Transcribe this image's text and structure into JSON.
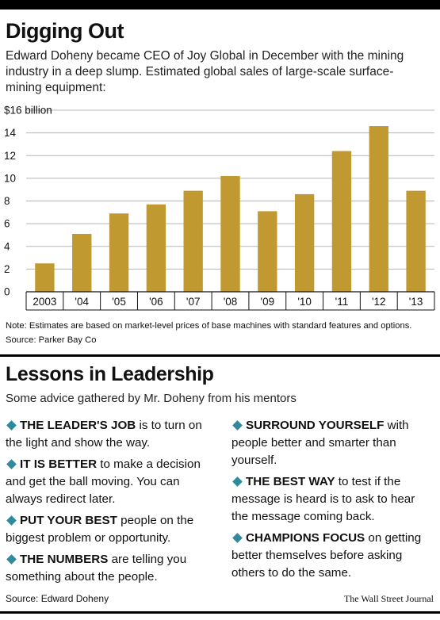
{
  "title": "Digging Out",
  "subtitle": "Edward Doheny became CEO of Joy Global in December with the mining industry in a deep slump. Estimated global sales of large-scale surface-mining equipment:",
  "chart_data": {
    "type": "bar",
    "categories": [
      "2003",
      "'04",
      "'05",
      "'06",
      "'07",
      "'08",
      "'09",
      "'10",
      "'11",
      "'12",
      "'13"
    ],
    "values": [
      2.5,
      5.1,
      6.9,
      7.7,
      8.9,
      10.2,
      7.1,
      8.6,
      12.4,
      14.6,
      8.9
    ],
    "ylim": [
      0,
      16
    ],
    "yticks": [
      0,
      2,
      4,
      6,
      8,
      10,
      12,
      14,
      16
    ],
    "ytick_labels": [
      "0",
      "2",
      "4",
      "6",
      "8",
      "10",
      "12",
      "14",
      "$16 billion"
    ],
    "grid": true,
    "bar_color": "#c09a30"
  },
  "note": {
    "text": "Note: Estimates are based on market-level prices of base machines with standard features and options.",
    "source": "Source: Parker Bay Co"
  },
  "lessons": {
    "title": "Lessons in Leadership",
    "subtitle": "Some advice gathered by Mr. Doheny from his mentors",
    "left": [
      {
        "lead": "THE LEADER'S JOB",
        "text": " is to turn on the light and show the way."
      },
      {
        "lead": "IT IS BETTER",
        "text": " to make a decision and get the ball moving. You can always redirect later."
      },
      {
        "lead": "PUT YOUR BEST",
        "text": " people on the biggest problem or opportunity."
      },
      {
        "lead": "THE NUMBERS",
        "text": " are telling you something about the people."
      }
    ],
    "right": [
      {
        "lead": "SURROUND YOURSELF",
        "text": " with people better and smarter than yourself."
      },
      {
        "lead": "THE BEST WAY",
        "text": " to test if the message is heard is to ask to hear the message coming back."
      },
      {
        "lead": "CHAMPIONS FOCUS",
        "text": " on getting better themselves before asking others to do the same."
      }
    ]
  },
  "footer": {
    "source": "Source: Edward Doheny",
    "brand": "The Wall Street Journal"
  },
  "colors": {
    "bullet": "#2f8a9e",
    "bar": "#c09a30"
  }
}
